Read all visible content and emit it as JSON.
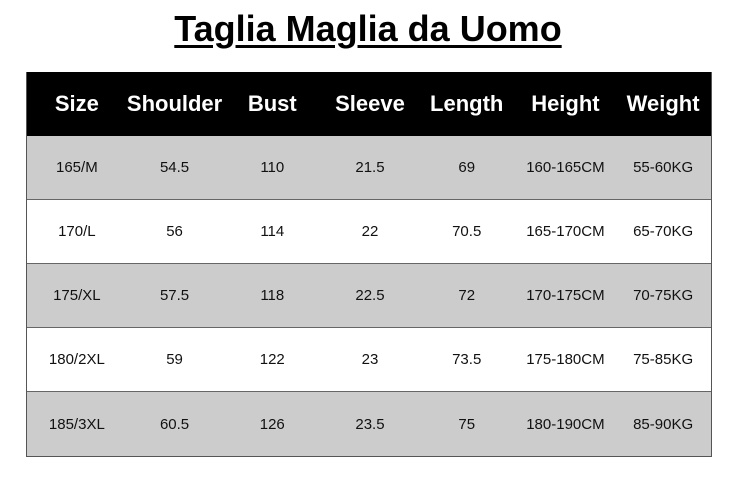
{
  "title": "Taglia Maglia da Uomo",
  "headers": [
    "Size",
    "Shoulder",
    "Bust",
    "Sleeve",
    "Length",
    "Height",
    "Weight"
  ],
  "rows": [
    [
      "165/M",
      "54.5",
      "110",
      "21.5",
      "69",
      "160-165CM",
      "55-60KG"
    ],
    [
      "170/L",
      "56",
      "114",
      "22",
      "70.5",
      "165-170CM",
      "65-70KG"
    ],
    [
      "175/XL",
      "57.5",
      "118",
      "22.5",
      "72",
      "170-175CM",
      "70-75KG"
    ],
    [
      "180/2XL",
      "59",
      "122",
      "23",
      "73.5",
      "175-180CM",
      "75-85KG"
    ],
    [
      "185/3XL",
      "60.5",
      "126",
      "23.5",
      "75",
      "180-190CM",
      "85-90KG"
    ]
  ],
  "colors": {
    "header_bg": "#000000",
    "alt_row_bg": "#cccccc"
  }
}
